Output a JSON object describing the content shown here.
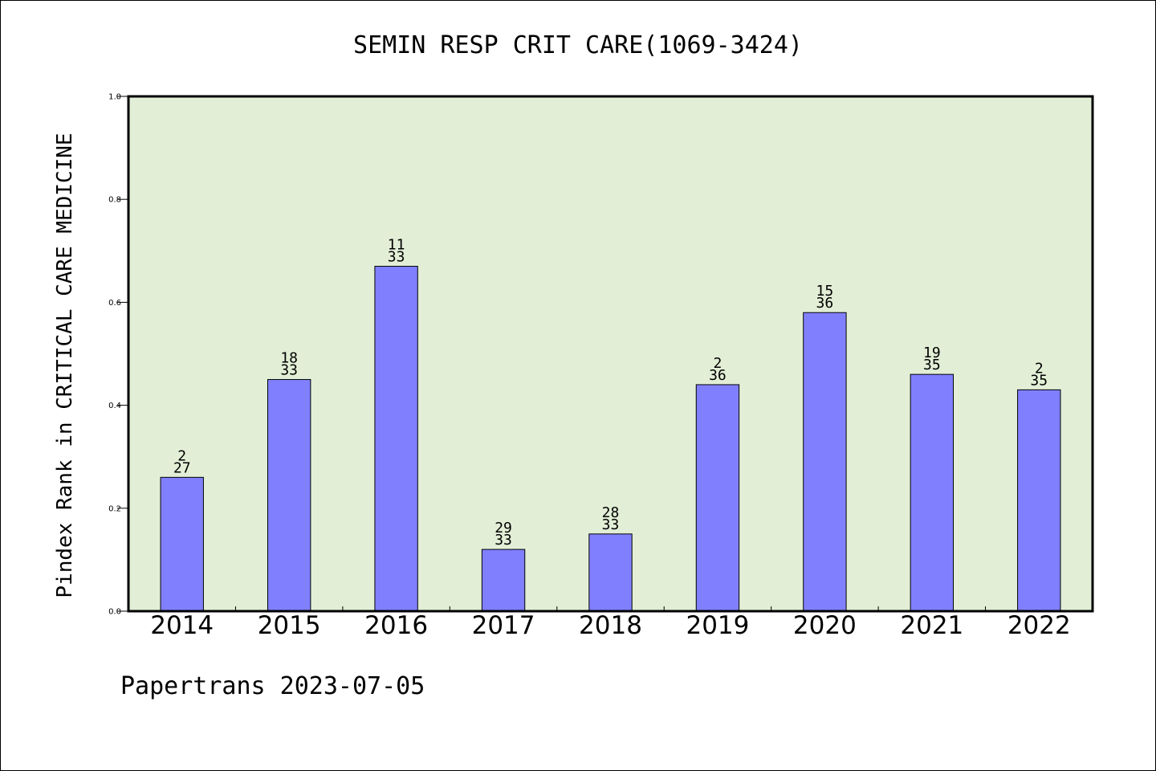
{
  "chart_data": {
    "type": "bar",
    "title": "SEMIN RESP CRIT CARE(1069-3424)",
    "ylabel": "Pindex Rank in CRITICAL CARE MEDICINE",
    "xlabel": "",
    "ylim": [
      0,
      1.0
    ],
    "yticks": [
      "0.0",
      "0.2",
      "0.4",
      "0.6",
      "0.8",
      "1.0"
    ],
    "categories": [
      "2014",
      "2015",
      "2016",
      "2017",
      "2018",
      "2019",
      "2020",
      "2021",
      "2022"
    ],
    "values": [
      0.26,
      0.45,
      0.67,
      0.12,
      0.15,
      0.44,
      0.58,
      0.46,
      0.43
    ],
    "rank_labels": [
      "2",
      "18",
      "11",
      "29",
      "28",
      "2",
      "15",
      "19",
      "2"
    ],
    "total_labels": [
      "27",
      "33",
      "33",
      "33",
      "33",
      "36",
      "36",
      "35",
      "35"
    ],
    "grid": false,
    "colors": {
      "plot_background": "#e2efd6",
      "bar_fill": "#8080ff",
      "bar_edge": "#000000"
    }
  },
  "footer": {
    "text": "Papertrans 2023-07-05"
  }
}
